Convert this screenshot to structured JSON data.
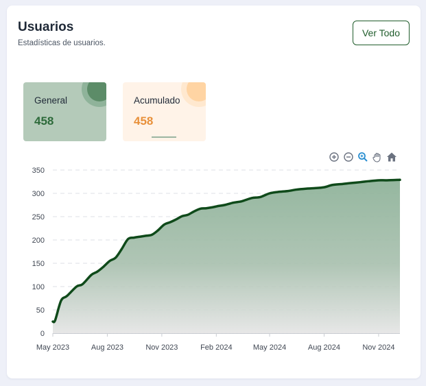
{
  "header": {
    "title": "Usuarios",
    "subtitle": "Estadísticas de usuarios.",
    "view_all_label": "Ver Todo"
  },
  "stats": [
    {
      "label": "General",
      "value": "458",
      "active": true
    },
    {
      "label": "Acumulado",
      "value": "458",
      "active": false
    }
  ],
  "toolbar": {
    "icons": [
      "zoom-in-icon",
      "zoom-out-icon",
      "zoom-selection-icon",
      "pan-hand-icon",
      "home-reset-icon"
    ],
    "active": "zoom-selection-icon"
  },
  "colors": {
    "accent": "#1f5c2b",
    "line": "#0f4a1a",
    "area_top": "#8fb39a",
    "area_bottom": "#e4e4e4",
    "acumulado": "#e8903a",
    "toolbar_active": "#2b8fd1",
    "toolbar_icon": "#6b7280"
  },
  "chart_data": {
    "type": "area",
    "y_ticks": [
      "0",
      "50",
      "100",
      "150",
      "200",
      "250",
      "300",
      "350"
    ],
    "x_tick_labels": [
      "May 2023",
      "Aug 2023",
      "Nov 2023",
      "Feb 2024",
      "May 2024",
      "Aug 2024",
      "Nov 2024"
    ],
    "ylim": [
      0,
      350
    ],
    "grid": true,
    "x_range": [
      "2023-05-01",
      "2024-12-07"
    ],
    "series": [
      {
        "dates": [
          "2023-05-01",
          "2023-05-05",
          "2023-05-15",
          "2023-05-25",
          "2023-06-10",
          "2023-06-20",
          "2023-07-05",
          "2023-07-15",
          "2023-07-25",
          "2023-08-05",
          "2023-08-15",
          "2023-08-25",
          "2023-09-05",
          "2023-09-15",
          "2023-09-25",
          "2023-10-05",
          "2023-10-15",
          "2023-10-25",
          "2023-11-05",
          "2023-11-15",
          "2023-11-25",
          "2023-12-05",
          "2023-12-15",
          "2023-12-25",
          "2024-01-05",
          "2024-01-15",
          "2024-01-25",
          "2024-02-05",
          "2024-02-15",
          "2024-03-01",
          "2024-03-15",
          "2024-04-01",
          "2024-04-15",
          "2024-05-01",
          "2024-05-15",
          "2024-06-01",
          "2024-06-15",
          "2024-07-01",
          "2024-07-15",
          "2024-08-01",
          "2024-08-15",
          "2024-09-01",
          "2024-09-15",
          "2024-10-01",
          "2024-10-15",
          "2024-11-01",
          "2024-11-15",
          "2024-12-07"
        ],
        "values": [
          25,
          28,
          70,
          80,
          100,
          105,
          125,
          132,
          142,
          155,
          162,
          180,
          202,
          205,
          207,
          209,
          211,
          220,
          233,
          238,
          244,
          251,
          254,
          261,
          267,
          268,
          270,
          273,
          275,
          280,
          283,
          290,
          292,
          300,
          303,
          305,
          308,
          310,
          311,
          313,
          318,
          320,
          322,
          324,
          326,
          328,
          328,
          329
        ]
      }
    ]
  }
}
